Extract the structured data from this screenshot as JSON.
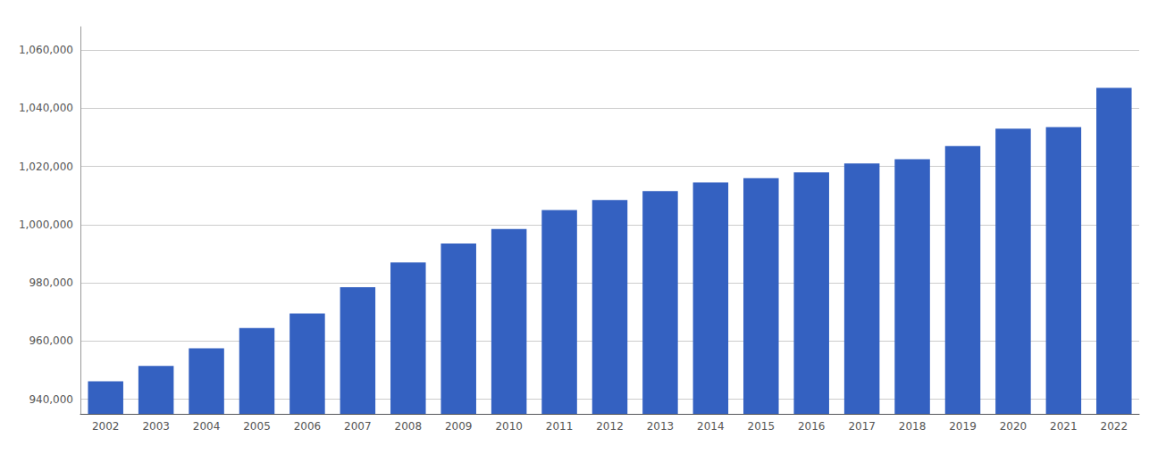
{
  "chart_data": {
    "type": "bar",
    "categories": [
      "2002",
      "2003",
      "2004",
      "2005",
      "2006",
      "2007",
      "2008",
      "2009",
      "2010",
      "2011",
      "2012",
      "2013",
      "2014",
      "2015",
      "2016",
      "2017",
      "2018",
      "2019",
      "2020",
      "2021",
      "2022"
    ],
    "values": [
      946200,
      951500,
      957500,
      964500,
      969500,
      978500,
      987000,
      993500,
      998500,
      1005000,
      1008500,
      1011500,
      1014500,
      1016000,
      1018000,
      1021000,
      1022500,
      1027000,
      1033000,
      1033500,
      1047000
    ],
    "color": "#3461c1",
    "ylim": [
      935000,
      1068000
    ],
    "yticks": [
      {
        "value": 940000,
        "label": "940,000"
      },
      {
        "value": 960000,
        "label": "960,000"
      },
      {
        "value": 980000,
        "label": "980,000"
      },
      {
        "value": 1000000,
        "label": "1,000,000"
      },
      {
        "value": 1020000,
        "label": "1,020,000"
      },
      {
        "value": 1040000,
        "label": "1,040,000"
      },
      {
        "value": 1060000,
        "label": "1,060,000"
      }
    ],
    "grid": true
  }
}
